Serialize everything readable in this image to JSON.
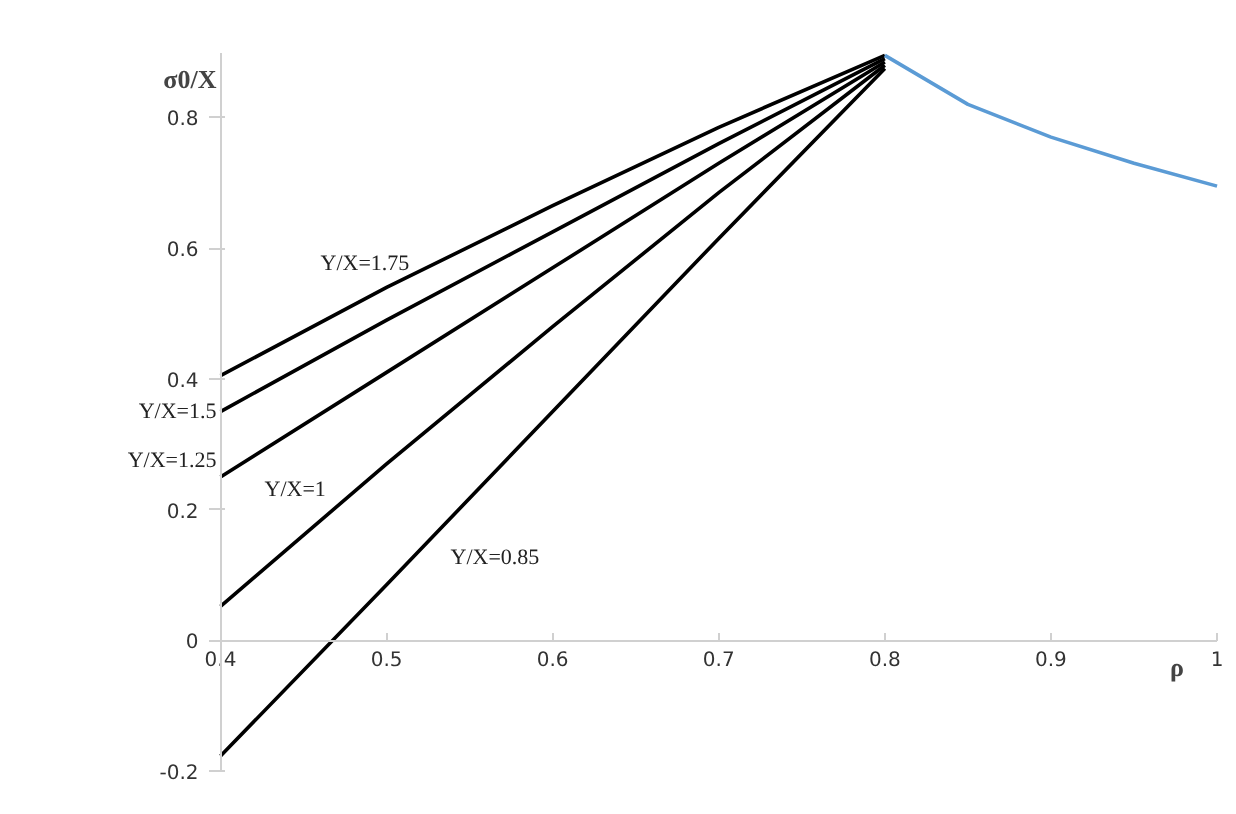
{
  "chart_data": {
    "type": "line",
    "xlabel": "ρ",
    "ylabel": "σ0/X",
    "xlim": [
      0.4,
      1
    ],
    "ylim": [
      -0.2,
      0.9
    ],
    "xticks": [
      0.4,
      0.5,
      0.6,
      0.7,
      0.8,
      0.9,
      1
    ],
    "yticks": [
      -0.2,
      0,
      0.2,
      0.4,
      0.6,
      0.8
    ],
    "grid": false,
    "marker": "none",
    "line_style": "solid",
    "series": [
      {
        "color": "#000000",
        "x": [
          0.4,
          0.5,
          0.6,
          0.7,
          0.8
        ],
        "values": [
          0.405,
          0.54,
          0.665,
          0.785,
          0.895
        ]
      },
      {
        "color": "#000000",
        "x": [
          0.4,
          0.5,
          0.6,
          0.7,
          0.8
        ],
        "values": [
          0.35,
          0.49,
          0.625,
          0.76,
          0.89
        ]
      },
      {
        "color": "#000000",
        "x": [
          0.4,
          0.5,
          0.6,
          0.7,
          0.8
        ],
        "values": [
          0.25,
          0.41,
          0.57,
          0.73,
          0.885
        ]
      },
      {
        "color": "#000000",
        "x": [
          0.4,
          0.5,
          0.6,
          0.7,
          0.8
        ],
        "values": [
          0.052,
          0.27,
          0.48,
          0.685,
          0.88
        ]
      },
      {
        "color": "#000000",
        "x": [
          0.4,
          0.5,
          0.6,
          0.7,
          0.8
        ],
        "values": [
          -0.177,
          0.085,
          0.35,
          0.615,
          0.875
        ]
      },
      {
        "color": "#5b9bd5",
        "x": [
          0.8,
          0.85,
          0.9,
          0.95,
          1
        ],
        "values": [
          0.895,
          0.82,
          0.77,
          0.73,
          0.695
        ]
      }
    ],
    "annotations": [
      "Y/X=1.75",
      "Y/X=1.5",
      "Y/X=1.25",
      "Y/X=1",
      "Y/X=0.85"
    ]
  }
}
